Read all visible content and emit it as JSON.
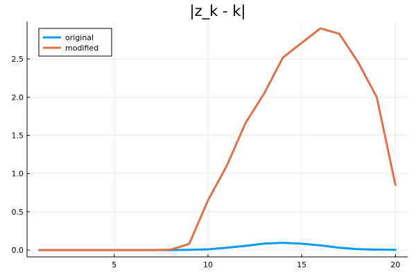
{
  "chart_data": {
    "type": "line",
    "title": "|z_k - k|",
    "xlabel": "",
    "ylabel": "",
    "xlim": [
      0.35,
      20.65
    ],
    "ylim": [
      -0.09,
      2.99
    ],
    "xticks": [
      5,
      10,
      15,
      20
    ],
    "yticks": [
      0.0,
      0.5,
      1.0,
      1.5,
      2.0,
      2.5
    ],
    "ytick_labels": [
      "0.0",
      "0.5",
      "1.0",
      "1.5",
      "2.0",
      "2.5"
    ],
    "grid": true,
    "legend_position": "top-left",
    "x": [
      1,
      2,
      3,
      4,
      5,
      6,
      7,
      8,
      9,
      10,
      11,
      12,
      13,
      14,
      15,
      16,
      17,
      18,
      19,
      20
    ],
    "series": [
      {
        "name": "original",
        "color": "#009af9",
        "values": [
          0,
          0,
          0,
          0,
          0,
          0,
          0,
          0,
          0.003,
          0.01,
          0.03,
          0.055,
          0.085,
          0.095,
          0.083,
          0.06,
          0.03,
          0.012,
          0.005,
          0.002
        ]
      },
      {
        "name": "modified",
        "color": "#e26f46",
        "values": [
          0,
          0,
          0,
          0,
          0,
          0,
          0,
          0.005,
          0.08,
          0.65,
          1.1,
          1.66,
          2.05,
          2.52,
          2.71,
          2.9,
          2.83,
          2.46,
          2.0,
          0.85
        ]
      }
    ]
  }
}
